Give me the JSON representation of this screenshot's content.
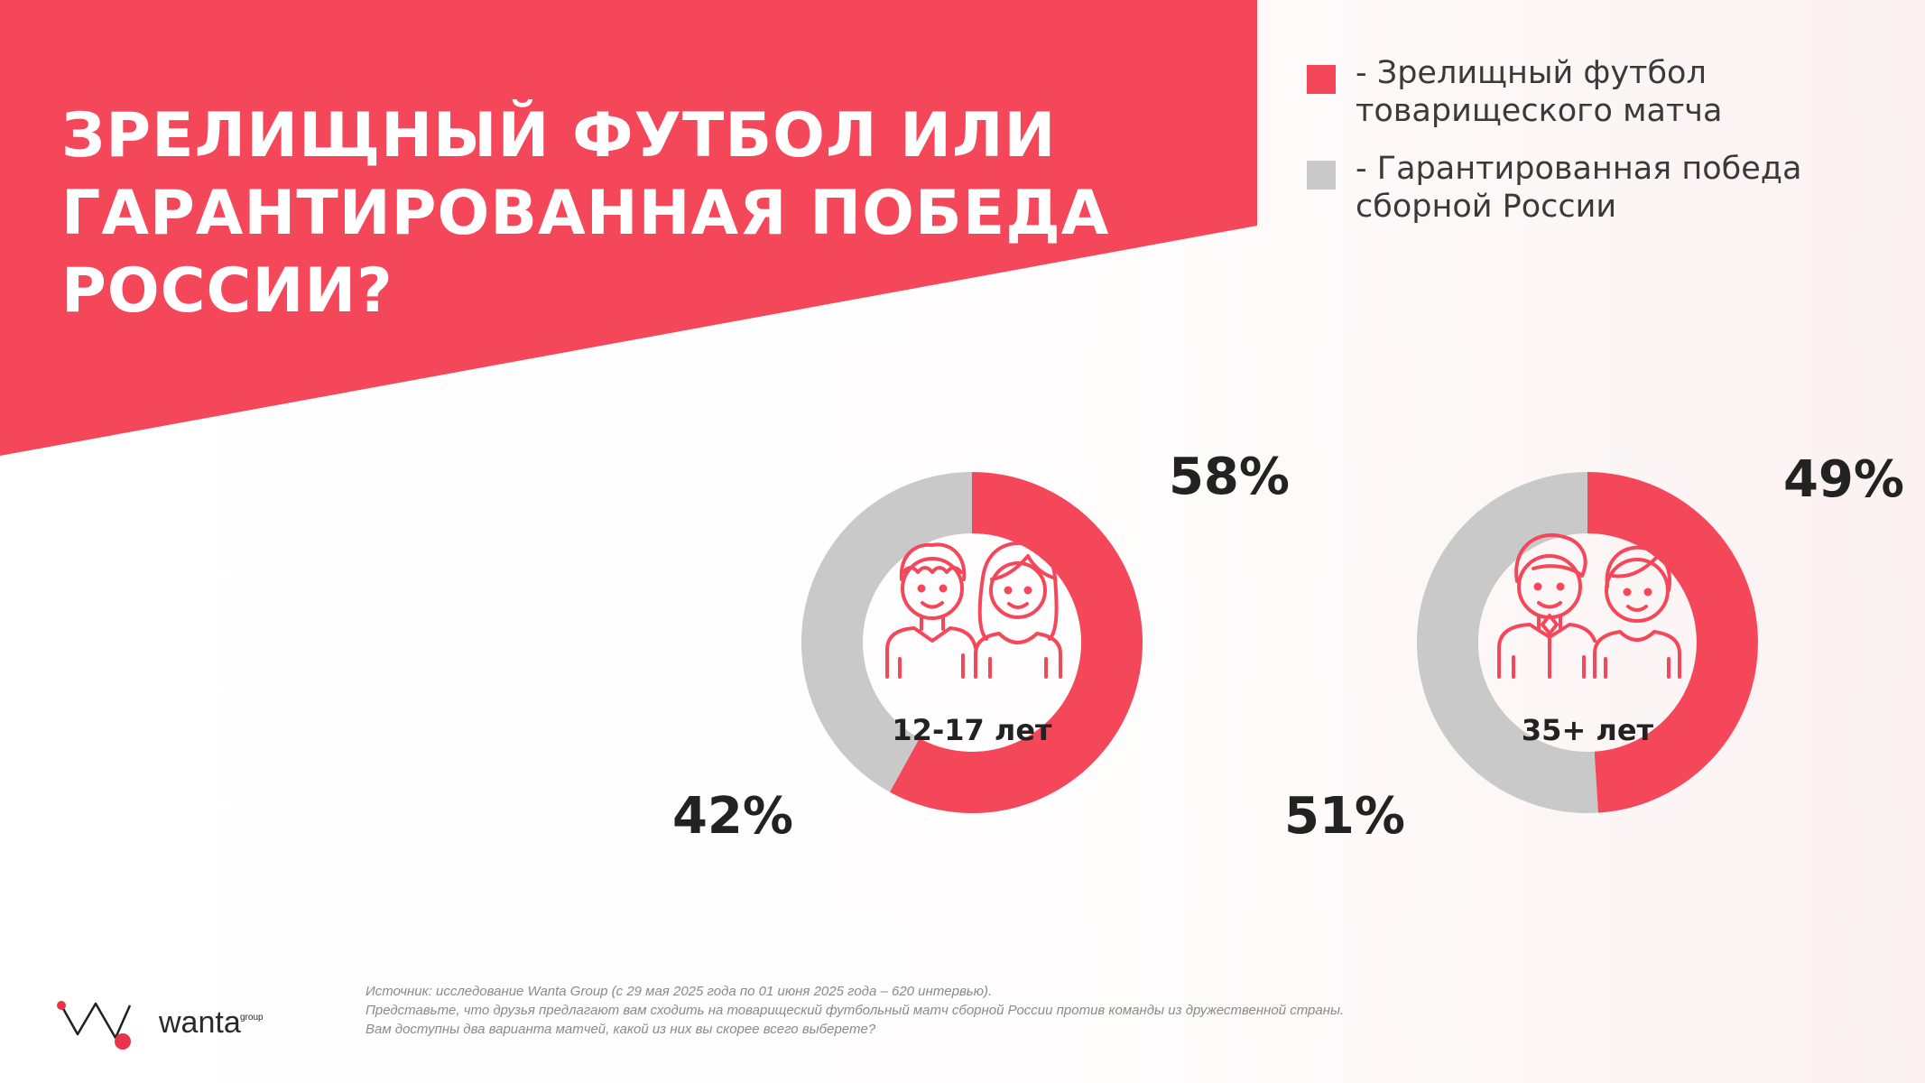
{
  "colors": {
    "accent": "#f4485a",
    "gray": "#c9c9c9",
    "dark": "#222222",
    "background": "#ffffff"
  },
  "header": {
    "title": "ЗРЕЛИЩНЫЙ ФУТБОЛ ИЛИ ГАРАНТИРОВАННАЯ ПОБЕДА РОССИИ?"
  },
  "legend": {
    "items": [
      {
        "label": "- Зрелищный футбол\nтоварищеского матча",
        "color": "#f4485a"
      },
      {
        "label": "- Гарантированная победа\nсборной России",
        "color": "#c9c9c9"
      }
    ]
  },
  "chart_data": [
    {
      "type": "pie",
      "center_label": "12-17 лет",
      "icon": "two-teenagers-icon",
      "series": [
        {
          "name": "Зрелищный футбол товарищеского матча",
          "value": 58,
          "label": "58%",
          "color": "#f4485a"
        },
        {
          "name": "Гарантированная победа сборной России",
          "value": 42,
          "label": "42%",
          "color": "#c9c9c9"
        }
      ]
    },
    {
      "type": "pie",
      "center_label": "35+ лет",
      "icon": "two-adults-icon",
      "series": [
        {
          "name": "Зрелищный футбол товарищеского матча",
          "value": 49,
          "label": "49%",
          "color": "#f4485a"
        },
        {
          "name": "Гарантированная победа сборной России",
          "value": 51,
          "label": "51%",
          "color": "#c9c9c9"
        }
      ]
    }
  ],
  "footer": {
    "logo_text": "wanta",
    "logo_superscript": "group",
    "source_lines": [
      "Источник: исследование Wanta Group (с 29 мая 2025 года по 01 июня 2025 года – 620 интервью).",
      "Представьте, что друзья предлагают вам сходить на товарищеский футбольный матч сборной России против команды из дружественной страны.",
      "Вам доступны два варианта матчей, какой из них вы скорее всего выберете?"
    ]
  }
}
